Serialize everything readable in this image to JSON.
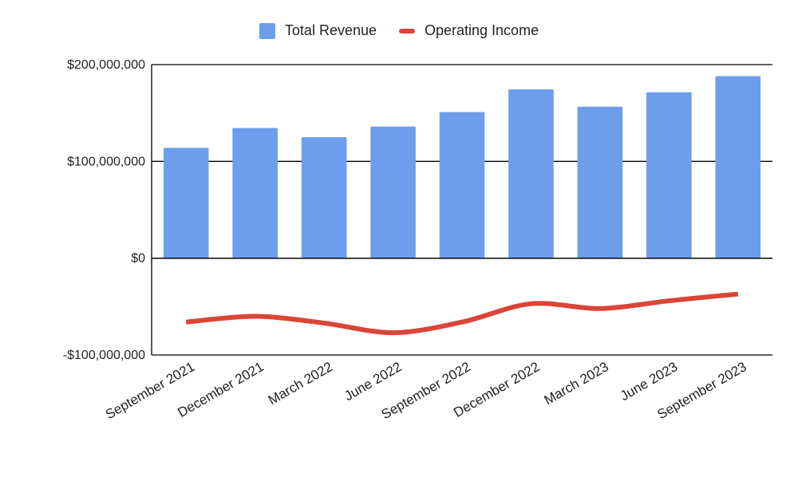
{
  "chart_data": {
    "type": "bar",
    "categories": [
      "September 2021",
      "December 2021",
      "March 2022",
      "June 2022",
      "September 2022",
      "December 2022",
      "March 2023",
      "June 2023",
      "September 2023"
    ],
    "series": [
      {
        "name": "Total Revenue",
        "type": "bar",
        "color": "#6d9eeb",
        "values": [
          114000000,
          134500000,
          125000000,
          136000000,
          151000000,
          174500000,
          156500000,
          171500000,
          188000000
        ]
      },
      {
        "name": "Operating Income",
        "type": "line",
        "color": "#db4437",
        "values": [
          -66000000,
          -60000000,
          -67000000,
          -77000000,
          -66000000,
          -47000000,
          -52000000,
          -44000000,
          -37000000
        ]
      }
    ],
    "ylim": [
      -100000000,
      200000000
    ],
    "yticks": [
      -100000000,
      0,
      100000000,
      200000000
    ],
    "ytick_labels": [
      "-$100,000,000",
      "$0",
      "$100,000,000",
      "$200,000,000"
    ],
    "legend_position": "top-center",
    "grid": true
  }
}
